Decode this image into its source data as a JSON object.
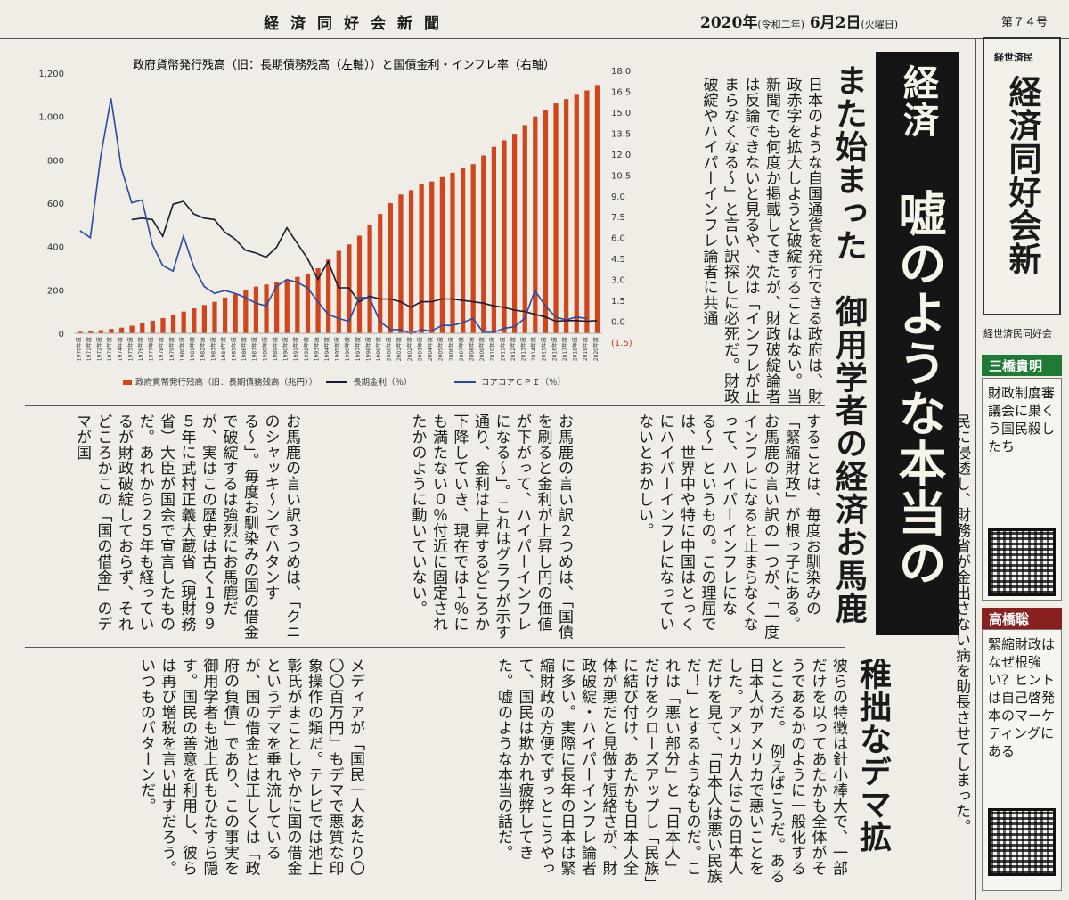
{
  "masthead": {
    "paper_name": "経済同好会新聞",
    "date_main": "2020年",
    "date_era": "(令和二年)",
    "date_day": " 6月2日",
    "date_weekday": "(火曜日)",
    "issue": "第７４号"
  },
  "headline": {
    "lead": "経済",
    "main": "嘘のような本当の話",
    "sub": "また始まった　御用学者の経済お馬鹿祭り",
    "demagogy": "稚拙なデマ拡声器"
  },
  "article": {
    "intro": "日本のような自国通貨を発行できる政府は、財政赤字を拡大しようと破綻することはない。当新聞でも何度か掲載してきたが、財政破綻論者は反論できないと見るや、次は「インフレが止まらなくなる〜」と言い訳探しに必死だ。財政破綻やハイパーインフレ論者に共通",
    "col1": "することは、毎度お馴染みの「緊縮財政」が根っ子にある。お馬鹿の言い訳の一つが、「一度インフレになると止まらなくなって、ハイパーインフレになる〜」というもの。この理屈では、世界中や特に中国はとっくにハイパーインフレになっていないとおかしい。",
    "col2": "お馬鹿の言い訳２つめは、「国債を刷ると金利が上昇し円の価値が下がって、ハイパーインフレになる〜」。これはグラフが示す通り、金利は上昇するどころか下降していき、現在では１％にも満たない０％付近に固定されたかのように動いていない。",
    "col3": "お馬鹿の言い訳３つめは、「クニのシャッキ〜ンでハタンする〜」。毎度お馴染みの国の借金で破綻するは強烈にお馬鹿だが、実はこの歴史は古く１９９５年に武村正義大蔵省（現財務省）大臣が国会で宣言したものだ。あれから２５年も経っているが財政破綻しておらず、それどころかこの「国の借金」のデマが国",
    "col4": "民に浸透し、財務省が金出さない病を助長させてしまった。",
    "col5": "彼らの特徴は針小棒大で、一部だけを以ってあたかも全体がそうであるかのように一般化するところだ。　例えばこうだ。ある日本人がアメリカで悪いことをした。アメリカ人はこの日本人だけを見て、「日本人は悪い民族だ！」とするようなものだ。これは「悪い部分」と「日本人」だけをクローズアップし「民族」に結び付け、あたかも日本人全体が悪だと見做す短絡さが、財政破綻・ハイパーインフレ論者に多い。実際に長年の日本は緊縮財政の方便でずっとこうやって、国民は欺かれ疲弊してきた。嘘のような本当の話だ。",
    "col6": "メディアが「国民一人あたり〇〇〇百万円」もデマで悪質な印象操作の類だ。テレビでは池上彰氏がまことしやかに国の借金というデマを垂れ流しているが、国の借金とは正しくは「政府の負債」であり、この事実を御用学者も池上氏もひたすら隠す。国民の善意を利用し、彼らは再び増税を言い出すだろう。いつものパターンだ。"
  },
  "sidebar": {
    "logo_tag": "経世済民",
    "logo_title": "経済同好会新聞",
    "org": "経世済民同好会",
    "author1": "三橋貴明",
    "card1": "財政制度審議会に巣くう国民殺したち",
    "author2": "高橋聡",
    "card2": "緊縮財政はなぜ根強い？ヒントは自己啓発本のマーケティングにある"
  },
  "chart_data": {
    "type": "bar+line",
    "title": "政府貨幣発行残高（旧：長期債務残高（左軸））と国債金利・インフレ率（右軸）",
    "categories": [
      "1970年度",
      "1971年度",
      "1972年度",
      "1973年度",
      "1974年度",
      "1975年度",
      "1976年度",
      "1977年度",
      "1978年度",
      "1979年度",
      "1980年度",
      "1981年度",
      "1982年度",
      "1983年度",
      "1984年度",
      "1985年度",
      "1986年度",
      "1987年度",
      "1988年度",
      "1989年度",
      "1990年度",
      "1991年度",
      "1992年度",
      "1993年度",
      "1994年度",
      "1995年度",
      "1996年度",
      "1997年度",
      "1998年度",
      "1999年度",
      "2000年度",
      "2001年度",
      "2002年度",
      "2003年度",
      "2004年度",
      "2005年度",
      "2006年度",
      "2007年度",
      "2008年度",
      "2009年度",
      "2010年度",
      "2011年度",
      "2012年度",
      "2013年度",
      "2014年度",
      "2015年度",
      "2016年度",
      "2017年度",
      "2018年度",
      "2019年度",
      "2020年度"
    ],
    "left_axis": {
      "ticks": [
        "0",
        "200",
        "400",
        "600",
        "800",
        "1,000",
        "1,200"
      ],
      "range": [
        0,
        1200
      ]
    },
    "right_axis": {
      "ticks": [
        "(1.5)",
        "0.0",
        "1.5",
        "3.0",
        "4.5",
        "6.0",
        "7.5",
        "9.0",
        "10.5",
        "12.0",
        "13.5",
        "15.0",
        "16.5",
        "18.0"
      ],
      "range": [
        -1.5,
        18
      ]
    },
    "series": [
      {
        "name": "政府貨幣発行残高（旧：長期債務残高（兆円））",
        "axis": "left",
        "kind": "bar",
        "color": "#d0451b",
        "values": [
          7,
          10,
          14,
          20,
          26,
          35,
          46,
          58,
          70,
          85,
          100,
          115,
          130,
          145,
          165,
          180,
          200,
          215,
          225,
          235,
          245,
          260,
          275,
          300,
          340,
          380,
          410,
          450,
          500,
          550,
          600,
          640,
          660,
          690,
          700,
          720,
          740,
          760,
          780,
          820,
          860,
          890,
          920,
          960,
          1000,
          1030,
          1060,
          1080,
          1100,
          1120,
          1145
        ]
      },
      {
        "name": "長期金利（％）",
        "axis": "right",
        "kind": "line",
        "color": "#1a1a2e",
        "values": [
          null,
          null,
          null,
          null,
          null,
          7.3,
          7.4,
          7.3,
          6.1,
          8.4,
          8.6,
          7.7,
          7.4,
          7.3,
          6.4,
          5.9,
          5.1,
          4.9,
          4.6,
          5.3,
          6.7,
          5.6,
          4.5,
          3.0,
          4.3,
          2.4,
          2.4,
          1.4,
          1.8,
          1.6,
          1.6,
          1.4,
          1.0,
          1.4,
          1.4,
          1.6,
          1.6,
          1.5,
          1.4,
          1.3,
          1.1,
          1.0,
          0.8,
          0.7,
          0.5,
          0.3,
          0.0,
          0.05,
          0.05,
          0.0,
          0.05
        ]
      },
      {
        "name": "コアコアＣＰＩ（％）",
        "axis": "right",
        "kind": "line",
        "color": "#2a4aa0",
        "values": [
          6.5,
          6.0,
          11.8,
          16.0,
          11.0,
          8.5,
          8.7,
          5.5,
          4.0,
          3.6,
          6.1,
          3.9,
          2.5,
          2.0,
          2.2,
          2.0,
          1.7,
          1.3,
          1.1,
          2.5,
          3.0,
          2.8,
          2.4,
          1.4,
          0.5,
          0.2,
          0.0,
          1.7,
          1.7,
          0.0,
          -0.6,
          -0.6,
          -0.9,
          -0.6,
          -0.7,
          -0.3,
          -0.3,
          -0.1,
          0.2,
          -0.8,
          -0.8,
          -0.5,
          -0.4,
          0.2,
          2.2,
          1.1,
          0.3,
          0.1,
          0.3,
          0.2,
          null
        ]
      }
    ],
    "legend_position": "bottom",
    "grid": false
  }
}
